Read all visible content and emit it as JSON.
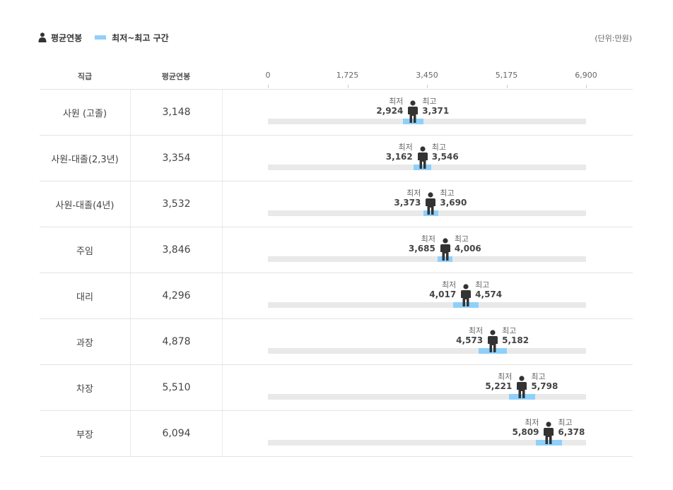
{
  "legend": {
    "avg_label": "평균연봉",
    "range_label": "최저~최고 구간",
    "unit": "(단위:만원)"
  },
  "header": {
    "rank": "직급",
    "avg": "평균연봉"
  },
  "words": {
    "min": "최저",
    "max": "최고"
  },
  "colors": {
    "range": "#8fd0fb",
    "track": "#e9e9e9",
    "person": "#333333"
  },
  "chart_data": {
    "type": "range-bar",
    "xlim": [
      0,
      6900
    ],
    "ticks": [
      "0",
      "1,725",
      "3,450",
      "5,175",
      "6,900"
    ],
    "tick_values": [
      0,
      1725,
      3450,
      5175,
      6900
    ],
    "rows": [
      {
        "rank": "사원 (고졸)",
        "avg": 3148,
        "avg_text": "3,148",
        "min": 2924,
        "min_text": "2,924",
        "max": 3371,
        "max_text": "3,371"
      },
      {
        "rank": "사원-대졸(2,3년)",
        "avg": 3354,
        "avg_text": "3,354",
        "min": 3162,
        "min_text": "3,162",
        "max": 3546,
        "max_text": "3,546"
      },
      {
        "rank": "사원-대졸(4년)",
        "avg": 3532,
        "avg_text": "3,532",
        "min": 3373,
        "min_text": "3,373",
        "max": 3690,
        "max_text": "3,690"
      },
      {
        "rank": "주임",
        "avg": 3846,
        "avg_text": "3,846",
        "min": 3685,
        "min_text": "3,685",
        "max": 4006,
        "max_text": "4,006"
      },
      {
        "rank": "대리",
        "avg": 4296,
        "avg_text": "4,296",
        "min": 4017,
        "min_text": "4,017",
        "max": 4574,
        "max_text": "4,574"
      },
      {
        "rank": "과장",
        "avg": 4878,
        "avg_text": "4,878",
        "min": 4573,
        "min_text": "4,573",
        "max": 5182,
        "max_text": "5,182"
      },
      {
        "rank": "차장",
        "avg": 5510,
        "avg_text": "5,510",
        "min": 5221,
        "min_text": "5,221",
        "max": 5798,
        "max_text": "5,798"
      },
      {
        "rank": "부장",
        "avg": 6094,
        "avg_text": "6,094",
        "min": 5809,
        "min_text": "5,809",
        "max": 6378,
        "max_text": "6,378"
      }
    ]
  }
}
